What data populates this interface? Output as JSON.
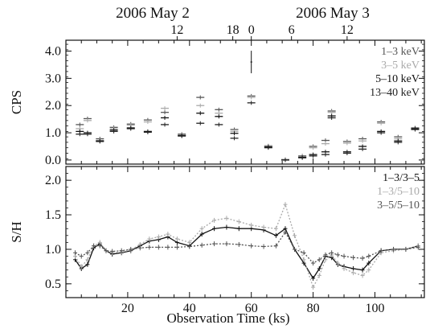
{
  "chart_data": [
    {
      "type": "scatter",
      "xlabel": "Observation Time (ks)",
      "ylabel": "CPS",
      "xlim": [
        0,
        116
      ],
      "ylim": [
        -0.15,
        4.4
      ],
      "xticks": [
        20,
        40,
        60,
        80,
        100
      ],
      "yticks": [
        0.0,
        1.0,
        2.0,
        3.0,
        4.0
      ],
      "ytick_labels": [
        "0.0",
        "1.0",
        "2.0",
        "3.0",
        "4.0"
      ],
      "top_axis": {
        "dates": [
          "2006 May 2",
          "2006 May 3"
        ],
        "hour_labels": [
          "12",
          "18",
          "0",
          "6",
          "12"
        ]
      },
      "legend": [
        "1–3 keV",
        "3–5 keV",
        "5–10 keV",
        "13–40 keV"
      ],
      "legend_colors": [
        "#555555",
        "#aaaaaa",
        "#111111",
        "#222222"
      ],
      "legend_position": "top-right",
      "series": [
        {
          "name": "1–3 keV",
          "color": "#555555",
          "x": [
            4.5,
            7,
            11,
            15.5,
            21,
            26.5,
            32,
            37.5,
            43.5,
            49.5,
            54.5,
            60,
            65.5,
            71,
            76.5,
            80,
            84,
            86,
            91,
            96,
            102,
            107.5,
            113
          ],
          "y": [
            1.3,
            1.52,
            0.78,
            1.2,
            1.32,
            1.47,
            1.75,
            0.95,
            2.3,
            1.85,
            1.12,
            2.35,
            0.52,
            0.02,
            0.15,
            0.5,
            0.72,
            1.8,
            0.68,
            0.78,
            1.4,
            0.85,
            1.18
          ]
        },
        {
          "name": "3–5 keV",
          "color": "#aaaaaa",
          "x": [
            4.5,
            7,
            11,
            15.5,
            21,
            26.5,
            32,
            37.5,
            43.5,
            49.5,
            54.5,
            60,
            65.5,
            71,
            76.5,
            80,
            84,
            86,
            91,
            96,
            102,
            107.5,
            113
          ],
          "y": [
            1.15,
            1.45,
            0.72,
            1.15,
            1.28,
            1.4,
            1.9,
            0.92,
            2.0,
            1.72,
            1.05,
            2.3,
            0.5,
            0.02,
            0.12,
            0.45,
            0.6,
            1.75,
            0.62,
            0.7,
            1.35,
            0.78,
            1.15
          ]
        },
        {
          "name": "5–10 keV",
          "color": "#111111",
          "x": [
            4.5,
            7,
            11,
            15.5,
            21,
            26.5,
            32,
            37.5,
            43.5,
            49.5,
            54.5,
            60,
            65.5,
            71,
            76.5,
            80,
            84,
            86,
            91,
            96,
            102,
            107.5,
            113
          ],
          "y": [
            1.05,
            1.0,
            0.7,
            1.1,
            1.18,
            1.05,
            1.55,
            0.9,
            1.72,
            1.6,
            0.98,
            3.6,
            0.48,
            0.0,
            0.1,
            0.2,
            0.3,
            1.62,
            0.3,
            0.5,
            1.05,
            0.7,
            1.15
          ]
        },
        {
          "name": "13–40 keV",
          "color": "#222222",
          "x": [
            4.5,
            7,
            11,
            15.5,
            21,
            26.5,
            32,
            37.5,
            43.5,
            49.5,
            54.5,
            60,
            65.5,
            71,
            76.5,
            80,
            84,
            86,
            91,
            96,
            102,
            107.5,
            113
          ],
          "y": [
            0.95,
            0.95,
            0.68,
            1.05,
            1.15,
            1.02,
            1.3,
            0.88,
            1.35,
            1.3,
            0.8,
            2.1,
            0.45,
            0.0,
            0.08,
            0.15,
            0.2,
            1.55,
            0.25,
            0.4,
            1.0,
            0.65,
            1.12
          ]
        }
      ]
    },
    {
      "type": "line",
      "xlabel": "Observation Time (ks)",
      "ylabel": "S/H",
      "xlim": [
        0,
        116
      ],
      "ylim": [
        0.3,
        2.2
      ],
      "xticks": [
        20,
        40,
        60,
        80,
        100
      ],
      "xtick_labels": [
        "20",
        "40",
        "60",
        "80",
        "100"
      ],
      "yticks": [
        0.5,
        1.0,
        1.5,
        2.0
      ],
      "ytick_labels": [
        "0.5",
        "1.0",
        "1.5",
        "2.0"
      ],
      "legend": [
        "1–3/3–5",
        "1–3/5–10",
        "3–5/5–10"
      ],
      "legend_colors": [
        "#111111",
        "#aaaaaa",
        "#555555"
      ],
      "legend_position": "top-right",
      "series": [
        {
          "name": "1–3/3–5",
          "color": "#111111",
          "x": [
            3,
            5,
            7,
            9,
            11,
            13,
            15,
            18,
            21,
            24,
            27,
            30,
            33,
            36,
            40,
            44,
            48,
            52,
            56,
            60,
            64,
            68,
            71,
            74,
            77,
            80,
            82,
            84,
            86,
            88,
            90,
            93,
            96,
            98,
            102,
            106,
            110,
            114
          ],
          "y": [
            0.85,
            0.72,
            0.78,
            1.02,
            1.08,
            0.98,
            0.93,
            0.95,
            0.98,
            1.05,
            1.12,
            1.14,
            1.18,
            1.1,
            1.05,
            1.22,
            1.3,
            1.32,
            1.3,
            1.3,
            1.28,
            1.2,
            1.3,
            1.0,
            0.8,
            0.58,
            0.72,
            0.9,
            0.88,
            0.78,
            0.75,
            0.72,
            0.7,
            0.8,
            0.98,
            1.0,
            1.0,
            1.05
          ]
        },
        {
          "name": "1–3/5–10",
          "color": "#aaaaaa",
          "x": [
            3,
            5,
            7,
            9,
            11,
            13,
            15,
            18,
            21,
            24,
            27,
            30,
            33,
            36,
            40,
            44,
            48,
            52,
            56,
            60,
            64,
            68,
            71,
            74,
            77,
            80,
            82,
            84,
            86,
            88,
            90,
            93,
            96,
            98,
            102,
            106,
            110,
            114
          ],
          "y": [
            0.9,
            0.75,
            0.85,
            1.05,
            1.1,
            0.98,
            0.95,
            0.96,
            0.99,
            1.07,
            1.15,
            1.18,
            1.22,
            1.15,
            1.1,
            1.3,
            1.42,
            1.45,
            1.4,
            1.35,
            1.32,
            1.3,
            1.65,
            1.2,
            0.85,
            0.45,
            0.62,
            0.85,
            0.92,
            0.8,
            0.72,
            0.66,
            0.62,
            0.7,
            0.95,
            0.98,
            1.0,
            1.05
          ]
        },
        {
          "name": "3–5/5–10",
          "color": "#555555",
          "x": [
            3,
            5,
            7,
            9,
            11,
            13,
            15,
            18,
            21,
            24,
            27,
            30,
            33,
            36,
            40,
            44,
            48,
            52,
            56,
            60,
            64,
            68,
            71,
            74,
            77,
            80,
            82,
            84,
            86,
            88,
            90,
            93,
            96,
            98,
            102,
            106,
            110,
            114
          ],
          "y": [
            0.95,
            0.9,
            0.95,
            1.05,
            1.05,
            0.98,
            0.97,
            0.98,
            1.0,
            1.02,
            1.03,
            1.03,
            1.03,
            1.03,
            1.04,
            1.06,
            1.08,
            1.08,
            1.07,
            1.05,
            1.04,
            1.05,
            1.25,
            1.0,
            0.95,
            0.8,
            0.85,
            0.92,
            0.95,
            0.92,
            0.9,
            0.88,
            0.87,
            0.9,
            0.98,
            1.0,
            1.0,
            1.03
          ]
        }
      ]
    }
  ]
}
